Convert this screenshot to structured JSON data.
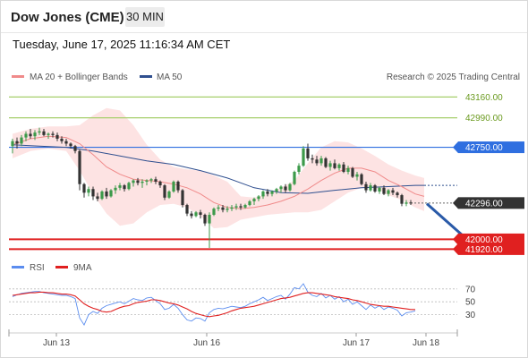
{
  "header": {
    "title": "Dow Jones (CME)",
    "timeframe": "30 MIN",
    "timestamp": "Tuesday, June 17, 2025 11:16:34 AM CET"
  },
  "legend": {
    "ma20": "MA 20 + Bollinger Bands",
    "ma50": "MA 50",
    "credit": "Research © 2025 Trading Central",
    "rsi": "RSI",
    "ma9": "9MA"
  },
  "colors": {
    "ma20": "#f08a8a",
    "bollinger_band": "#fde3e3",
    "ma50": "#2f4f8f",
    "resistance_green": "#a6cf6b",
    "pivot_blue": "#2f6fe0",
    "support_red": "#e02020",
    "last_price": "#333333",
    "rsi": "#5b8def",
    "rsi_ma": "#e02020",
    "arrow": "#2a5aa8"
  },
  "chart_data": [
    {
      "type": "candlestick",
      "title": "",
      "x_ticks": [
        "Jun 13",
        "Jun 16",
        "Jun 17",
        "Jun 18"
      ],
      "ylim": [
        41850,
        43250
      ],
      "ohlc": [
        [
          42760,
          42820,
          42700,
          42800
        ],
        [
          42800,
          42830,
          42740,
          42780
        ],
        [
          42780,
          42850,
          42760,
          42830
        ],
        [
          42830,
          42880,
          42800,
          42860
        ],
        [
          42860,
          42900,
          42820,
          42840
        ],
        [
          42840,
          42890,
          42810,
          42870
        ],
        [
          42870,
          42910,
          42850,
          42880
        ],
        [
          42880,
          42900,
          42840,
          42850
        ],
        [
          42850,
          42870,
          42820,
          42860
        ],
        [
          42860,
          42880,
          42830,
          42850
        ],
        [
          42850,
          42870,
          42800,
          42820
        ],
        [
          42820,
          42840,
          42780,
          42800
        ],
        [
          42800,
          42820,
          42760,
          42780
        ],
        [
          42780,
          42790,
          42740,
          42760
        ],
        [
          42760,
          42770,
          42700,
          42720
        ],
        [
          42720,
          42730,
          42400,
          42450
        ],
        [
          42450,
          42460,
          42340,
          42380
        ],
        [
          42380,
          42430,
          42350,
          42410
        ],
        [
          42410,
          42430,
          42320,
          42350
        ],
        [
          42350,
          42380,
          42310,
          42330
        ],
        [
          42330,
          42400,
          42320,
          42390
        ],
        [
          42390,
          42420,
          42330,
          42350
        ],
        [
          42350,
          42410,
          42340,
          42400
        ],
        [
          42400,
          42440,
          42370,
          42420
        ],
        [
          42420,
          42460,
          42400,
          42440
        ],
        [
          42440,
          42450,
          42390,
          42410
        ],
        [
          42410,
          42470,
          42400,
          42460
        ],
        [
          42460,
          42490,
          42430,
          42480
        ],
        [
          42480,
          42500,
          42440,
          42460
        ],
        [
          42460,
          42490,
          42420,
          42470
        ],
        [
          42470,
          42490,
          42440,
          42480
        ],
        [
          42480,
          42500,
          42460,
          42490
        ],
        [
          42490,
          42510,
          42450,
          42470
        ],
        [
          42470,
          42480,
          42420,
          42440
        ],
        [
          42440,
          42450,
          42320,
          42340
        ],
        [
          42340,
          42400,
          42330,
          42390
        ],
        [
          42390,
          42480,
          42380,
          42470
        ],
        [
          42470,
          42480,
          42380,
          42400
        ],
        [
          42400,
          42410,
          42260,
          42280
        ],
        [
          42280,
          42290,
          42190,
          42210
        ],
        [
          42210,
          42230,
          42170,
          42190
        ],
        [
          42190,
          42230,
          42180,
          42220
        ],
        [
          42220,
          42240,
          42170,
          42200
        ],
        [
          42200,
          42210,
          42110,
          42130
        ],
        [
          42130,
          42220,
          41930,
          42200
        ],
        [
          42200,
          42260,
          42190,
          42250
        ],
        [
          42250,
          42280,
          42230,
          42260
        ],
        [
          42260,
          42280,
          42220,
          42240
        ],
        [
          42240,
          42270,
          42220,
          42250
        ],
        [
          42250,
          42280,
          42230,
          42260
        ],
        [
          42260,
          42290,
          42240,
          42270
        ],
        [
          42270,
          42290,
          42240,
          42260
        ],
        [
          42260,
          42290,
          42250,
          42280
        ],
        [
          42280,
          42320,
          42270,
          42310
        ],
        [
          42310,
          42340,
          42280,
          42330
        ],
        [
          42330,
          42360,
          42310,
          42350
        ],
        [
          42350,
          42400,
          42330,
          42390
        ],
        [
          42390,
          42410,
          42350,
          42370
        ],
        [
          42370,
          42400,
          42350,
          42390
        ],
        [
          42390,
          42420,
          42370,
          42410
        ],
        [
          42410,
          42440,
          42380,
          42430
        ],
        [
          42430,
          42450,
          42380,
          42400
        ],
        [
          42400,
          42460,
          42390,
          42450
        ],
        [
          42450,
          42560,
          42440,
          42550
        ],
        [
          42550,
          42620,
          42530,
          42600
        ],
        [
          42600,
          42760,
          42590,
          42740
        ],
        [
          42740,
          42780,
          42640,
          42660
        ],
        [
          42660,
          42690,
          42620,
          42650
        ],
        [
          42650,
          42680,
          42600,
          42620
        ],
        [
          42620,
          42680,
          42600,
          42660
        ],
        [
          42660,
          42670,
          42580,
          42590
        ],
        [
          42590,
          42640,
          42560,
          42620
        ],
        [
          42620,
          42650,
          42570,
          42580
        ],
        [
          42580,
          42620,
          42560,
          42610
        ],
        [
          42610,
          42630,
          42540,
          42550
        ],
        [
          42550,
          42600,
          42530,
          42580
        ],
        [
          42580,
          42590,
          42500,
          42510
        ],
        [
          42510,
          42550,
          42480,
          42530
        ],
        [
          42530,
          42540,
          42440,
          42450
        ],
        [
          42450,
          42470,
          42380,
          42400
        ],
        [
          42400,
          42460,
          42390,
          42440
        ],
        [
          42440,
          42450,
          42380,
          42390
        ],
        [
          42390,
          42430,
          42370,
          42420
        ],
        [
          42420,
          42440,
          42360,
          42370
        ],
        [
          42370,
          42410,
          42350,
          42400
        ],
        [
          42400,
          42420,
          42360,
          42380
        ],
        [
          42380,
          42390,
          42340,
          42360
        ],
        [
          42360,
          42370,
          42270,
          42290
        ],
        [
          42290,
          42320,
          42270,
          42300
        ],
        [
          42300,
          42320,
          42280,
          42296
        ]
      ],
      "ma20": [
        [
          0,
          42770
        ],
        [
          4,
          42820
        ],
        [
          8,
          42840
        ],
        [
          12,
          42830
        ],
        [
          15,
          42780
        ],
        [
          18,
          42690
        ],
        [
          21,
          42590
        ],
        [
          24,
          42530
        ],
        [
          27,
          42490
        ],
        [
          30,
          42480
        ],
        [
          33,
          42470
        ],
        [
          36,
          42450
        ],
        [
          39,
          42420
        ],
        [
          42,
          42370
        ],
        [
          45,
          42300
        ],
        [
          48,
          42260
        ],
        [
          51,
          42250
        ],
        [
          54,
          42260
        ],
        [
          57,
          42280
        ],
        [
          60,
          42310
        ],
        [
          63,
          42350
        ],
        [
          66,
          42410
        ],
        [
          69,
          42480
        ],
        [
          72,
          42540
        ],
        [
          75,
          42580
        ],
        [
          78,
          42580
        ],
        [
          81,
          42550
        ],
        [
          84,
          42480
        ],
        [
          87,
          42430
        ],
        [
          90,
          42370
        ],
        [
          92,
          42350
        ]
      ],
      "bollinger_upper": [
        [
          0,
          42860
        ],
        [
          4,
          42900
        ],
        [
          8,
          42920
        ],
        [
          12,
          42920
        ],
        [
          15,
          42930
        ],
        [
          18,
          43010
        ],
        [
          21,
          43070
        ],
        [
          24,
          43050
        ],
        [
          27,
          42930
        ],
        [
          30,
          42770
        ],
        [
          33,
          42650
        ],
        [
          36,
          42590
        ],
        [
          39,
          42570
        ],
        [
          42,
          42560
        ],
        [
          45,
          42520
        ],
        [
          48,
          42470
        ],
        [
          51,
          42350
        ],
        [
          54,
          42340
        ],
        [
          57,
          42370
        ],
        [
          60,
          42420
        ],
        [
          63,
          42480
        ],
        [
          66,
          42620
        ],
        [
          69,
          42750
        ],
        [
          72,
          42800
        ],
        [
          75,
          42790
        ],
        [
          78,
          42740
        ],
        [
          81,
          42680
        ],
        [
          84,
          42610
        ],
        [
          87,
          42560
        ],
        [
          90,
          42520
        ],
        [
          92,
          42500
        ]
      ],
      "bollinger_lower": [
        [
          0,
          42660
        ],
        [
          4,
          42720
        ],
        [
          8,
          42740
        ],
        [
          12,
          42720
        ],
        [
          15,
          42560
        ],
        [
          18,
          42370
        ],
        [
          21,
          42210
        ],
        [
          24,
          42110
        ],
        [
          27,
          42130
        ],
        [
          30,
          42220
        ],
        [
          33,
          42280
        ],
        [
          36,
          42290
        ],
        [
          39,
          42260
        ],
        [
          42,
          42190
        ],
        [
          45,
          42090
        ],
        [
          48,
          42100
        ],
        [
          51,
          42160
        ],
        [
          54,
          42180
        ],
        [
          57,
          42200
        ],
        [
          60,
          42210
        ],
        [
          63,
          42220
        ],
        [
          66,
          42220
        ],
        [
          69,
          42240
        ],
        [
          72,
          42310
        ],
        [
          75,
          42380
        ],
        [
          78,
          42420
        ],
        [
          81,
          42420
        ],
        [
          84,
          42360
        ],
        [
          87,
          42320
        ],
        [
          90,
          42260
        ],
        [
          92,
          42230
        ]
      ],
      "ma50": [
        [
          0,
          42770
        ],
        [
          6,
          42760
        ],
        [
          12,
          42750
        ],
        [
          18,
          42720
        ],
        [
          24,
          42680
        ],
        [
          30,
          42640
        ],
        [
          36,
          42610
        ],
        [
          42,
          42560
        ],
        [
          48,
          42500
        ],
        [
          54,
          42420
        ],
        [
          60,
          42380
        ],
        [
          66,
          42375
        ],
        [
          72,
          42400
        ],
        [
          78,
          42420
        ],
        [
          84,
          42430
        ],
        [
          90,
          42440
        ],
        [
          92,
          42440
        ]
      ],
      "levels": [
        {
          "value": 43160,
          "label": "43160.00",
          "color": "#a6cf6b",
          "kind": "resistance"
        },
        {
          "value": 42990,
          "label": "42990.00",
          "color": "#a6cf6b",
          "kind": "resistance"
        },
        {
          "value": 42750,
          "label": "42750.00",
          "color": "#2f6fe0",
          "kind": "pivot"
        },
        {
          "value": 42296,
          "label": "42296.00",
          "color": "#333333",
          "kind": "last"
        },
        {
          "value": 42000,
          "label": "42000.00",
          "color": "#e02020",
          "kind": "support"
        },
        {
          "value": 41920,
          "label": "41920.00",
          "color": "#e02020",
          "kind": "support"
        }
      ],
      "forecast_arrow": {
        "from": [
          92,
          42290
        ],
        "to": [
          104,
          41960
        ]
      }
    },
    {
      "type": "line",
      "title": "",
      "ylim": [
        10,
        85
      ],
      "y_ticks": [
        70,
        50,
        30
      ],
      "series": [
        {
          "name": "RSI",
          "values": [
            58,
            61,
            63,
            64,
            65,
            66,
            66,
            64,
            63,
            62,
            61,
            60,
            60,
            58,
            55,
            25,
            14,
            30,
            35,
            32,
            40,
            44,
            46,
            48,
            50,
            47,
            51,
            55,
            53,
            52,
            56,
            57,
            52,
            47,
            38,
            40,
            46,
            40,
            30,
            22,
            20,
            25,
            24,
            20,
            33,
            38,
            40,
            39,
            41,
            43,
            42,
            41,
            43,
            47,
            50,
            53,
            57,
            52,
            55,
            58,
            60,
            54,
            62,
            72,
            70,
            78,
            65,
            60,
            58,
            63,
            56,
            60,
            54,
            58,
            50,
            54,
            46,
            50,
            44,
            38,
            45,
            40,
            44,
            38,
            42,
            40,
            37,
            28,
            33,
            34,
            36
          ]
        },
        {
          "name": "9MA",
          "values": [
            60,
            61,
            62,
            63,
            64,
            64,
            65,
            65,
            64,
            64,
            63,
            62,
            62,
            61,
            59,
            53,
            47,
            43,
            40,
            38,
            35,
            34,
            35,
            38,
            41,
            43,
            44,
            47,
            49,
            50,
            51,
            53,
            53,
            52,
            50,
            48,
            47,
            45,
            42,
            39,
            35,
            32,
            30,
            28,
            27,
            28,
            29,
            31,
            33,
            36,
            38,
            40,
            41,
            42,
            43,
            45,
            47,
            49,
            51,
            53,
            55,
            56,
            57,
            59,
            61,
            63,
            64,
            64,
            63,
            62,
            61,
            60,
            58,
            57,
            56,
            55,
            53,
            52,
            50,
            48,
            46,
            45,
            44,
            43,
            43,
            42,
            41,
            40,
            39,
            38,
            38
          ]
        }
      ]
    }
  ]
}
